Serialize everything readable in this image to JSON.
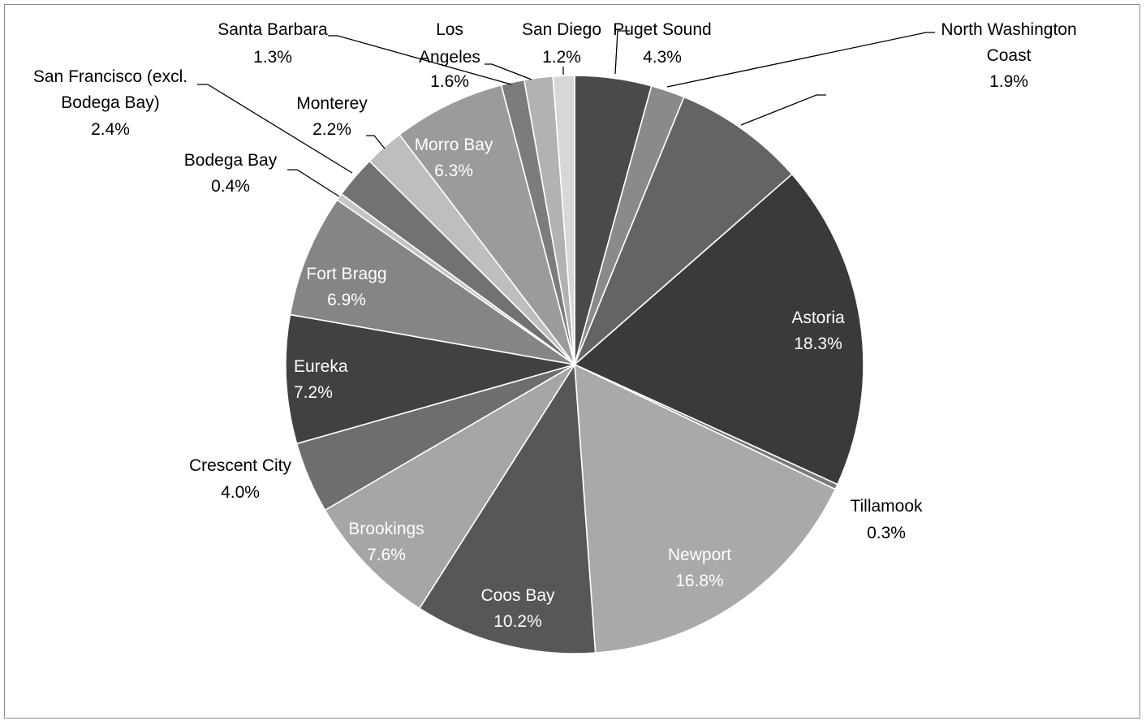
{
  "chart_data": {
    "type": "pie",
    "title": "",
    "start": "12 o'clock",
    "direction": "clockwise",
    "slices": [
      {
        "label": "Puget Sound",
        "value": 4.3,
        "display": "4.3%",
        "color": "#4a4a4a",
        "label_placement": "outside"
      },
      {
        "label": "North Washington Coast",
        "label_lines": [
          "North Washington",
          "Coast"
        ],
        "value": 1.9,
        "display": "1.9%",
        "color": "#8a8a8a",
        "label_placement": "outside"
      },
      {
        "label": "",
        "value": 7.4,
        "display": "",
        "color": "#646464",
        "label_placement": "outside"
      },
      {
        "label": "Astoria",
        "value": 18.3,
        "display": "18.3%",
        "color": "#3a3a3a",
        "label_placement": "inside"
      },
      {
        "label": "Tillamook",
        "value": 0.3,
        "display": "0.3%",
        "color": "#7a7a7a",
        "label_placement": "outside"
      },
      {
        "label": "Newport",
        "value": 16.8,
        "display": "16.8%",
        "color": "#a9a9a9",
        "label_placement": "inside"
      },
      {
        "label": "Coos Bay",
        "value": 10.2,
        "display": "10.2%",
        "color": "#575757",
        "label_placement": "inside"
      },
      {
        "label": "Brookings",
        "value": 7.6,
        "display": "7.6%",
        "color": "#a6a6a6",
        "label_placement": "inside"
      },
      {
        "label": "Crescent City",
        "value": 4.0,
        "display": "4.0%",
        "color": "#6e6e6e",
        "label_placement": "outside"
      },
      {
        "label": "Eureka",
        "value": 7.2,
        "display": "7.2%",
        "color": "#414141",
        "label_placement": "inside"
      },
      {
        "label": "Fort Bragg",
        "value": 6.9,
        "display": "6.9%",
        "color": "#858585",
        "label_placement": "inside"
      },
      {
        "label": "Bodega Bay",
        "value": 0.4,
        "display": "0.4%",
        "color": "#c4c4c4",
        "label_placement": "outside"
      },
      {
        "label": "San Francisco (excl. Bodega Bay)",
        "label_lines": [
          "San Francisco (excl.",
          "Bodega Bay)"
        ],
        "value": 2.4,
        "display": "2.4%",
        "color": "#727272",
        "label_placement": "outside"
      },
      {
        "label": "Monterey",
        "value": 2.2,
        "display": "2.2%",
        "color": "#bebebe",
        "label_placement": "outside"
      },
      {
        "label": "Morro Bay",
        "value": 6.3,
        "display": "6.3%",
        "color": "#9b9b9b",
        "label_placement": "inside"
      },
      {
        "label": "Santa Barbara",
        "value": 1.3,
        "display": "1.3%",
        "color": "#7c7c7c",
        "label_placement": "outside"
      },
      {
        "label": "Los Angeles",
        "label_lines": [
          "Los",
          "Angeles"
        ],
        "value": 1.6,
        "display": "1.6%",
        "color": "#b2b2b2",
        "label_placement": "outside"
      },
      {
        "label": "San Diego",
        "value": 1.2,
        "display": "1.2%",
        "color": "#d7d7d7",
        "label_placement": "outside"
      }
    ]
  }
}
